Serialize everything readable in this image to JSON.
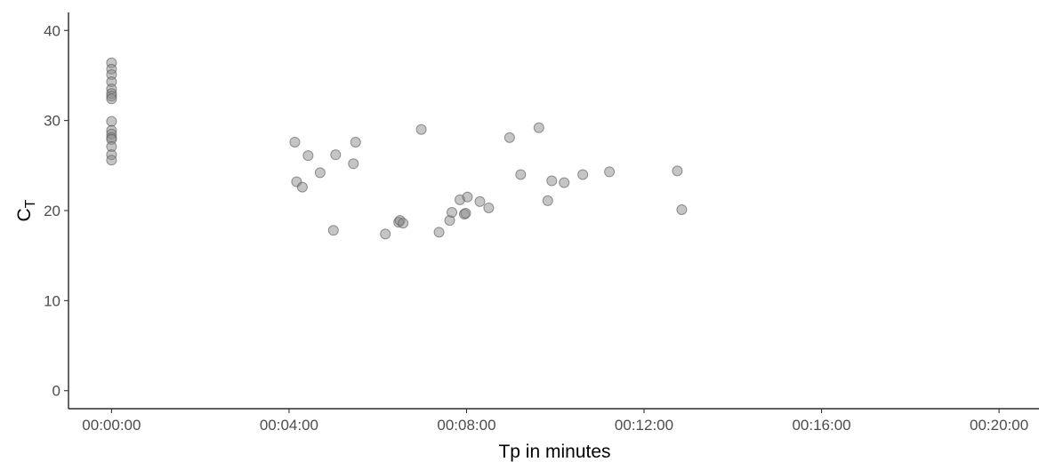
{
  "chart_data": {
    "type": "scatter",
    "xlabel": "Tp in minutes",
    "ylabel": "C",
    "ylabel_subscript": "T",
    "x_ticks": [
      "00:00:00",
      "00:04:00",
      "00:08:00",
      "00:12:00",
      "00:16:00",
      "00:20:00"
    ],
    "x_tick_values_min": [
      0,
      4,
      8,
      12,
      16,
      20
    ],
    "y_ticks": [
      "0",
      "10",
      "20",
      "30",
      "40"
    ],
    "y_tick_values": [
      0,
      10,
      20,
      30,
      40
    ],
    "xlim_min": [
      -0.97,
      20.9
    ],
    "ylim": [
      -2,
      42
    ],
    "grid": false,
    "points": [
      {
        "x_min": 0,
        "y": 36.4
      },
      {
        "x_min": 0,
        "y": 35.7
      },
      {
        "x_min": 0,
        "y": 35.1
      },
      {
        "x_min": 0,
        "y": 34.3
      },
      {
        "x_min": 0,
        "y": 33.5
      },
      {
        "x_min": 0,
        "y": 33.0
      },
      {
        "x_min": 0,
        "y": 32.7
      },
      {
        "x_min": 0,
        "y": 32.4
      },
      {
        "x_min": 0,
        "y": 29.9
      },
      {
        "x_min": 0,
        "y": 28.9
      },
      {
        "x_min": 0,
        "y": 28.5
      },
      {
        "x_min": 0,
        "y": 28.1
      },
      {
        "x_min": 0,
        "y": 27.9
      },
      {
        "x_min": 0,
        "y": 27.1
      },
      {
        "x_min": 0,
        "y": 26.2
      },
      {
        "x_min": 0,
        "y": 25.6
      },
      {
        "x_min": 4.13,
        "y": 27.6
      },
      {
        "x_min": 4.17,
        "y": 23.2
      },
      {
        "x_min": 4.3,
        "y": 22.6
      },
      {
        "x_min": 4.43,
        "y": 26.1
      },
      {
        "x_min": 4.7,
        "y": 24.2
      },
      {
        "x_min": 5.0,
        "y": 17.8
      },
      {
        "x_min": 5.05,
        "y": 26.2
      },
      {
        "x_min": 5.45,
        "y": 25.2
      },
      {
        "x_min": 5.5,
        "y": 27.6
      },
      {
        "x_min": 6.17,
        "y": 17.4
      },
      {
        "x_min": 6.47,
        "y": 18.7
      },
      {
        "x_min": 6.5,
        "y": 18.9
      },
      {
        "x_min": 6.57,
        "y": 18.6
      },
      {
        "x_min": 6.98,
        "y": 29.0
      },
      {
        "x_min": 7.38,
        "y": 17.6
      },
      {
        "x_min": 7.62,
        "y": 18.9
      },
      {
        "x_min": 7.67,
        "y": 19.8
      },
      {
        "x_min": 7.85,
        "y": 21.2
      },
      {
        "x_min": 7.95,
        "y": 19.6
      },
      {
        "x_min": 7.98,
        "y": 19.7
      },
      {
        "x_min": 8.02,
        "y": 21.5
      },
      {
        "x_min": 8.3,
        "y": 21.0
      },
      {
        "x_min": 8.5,
        "y": 20.3
      },
      {
        "x_min": 8.97,
        "y": 28.1
      },
      {
        "x_min": 9.22,
        "y": 24.0
      },
      {
        "x_min": 9.63,
        "y": 29.2
      },
      {
        "x_min": 9.83,
        "y": 21.1
      },
      {
        "x_min": 9.92,
        "y": 23.3
      },
      {
        "x_min": 10.2,
        "y": 23.1
      },
      {
        "x_min": 10.62,
        "y": 24.0
      },
      {
        "x_min": 11.22,
        "y": 24.3
      },
      {
        "x_min": 12.75,
        "y": 24.4
      },
      {
        "x_min": 12.85,
        "y": 20.1
      }
    ]
  }
}
